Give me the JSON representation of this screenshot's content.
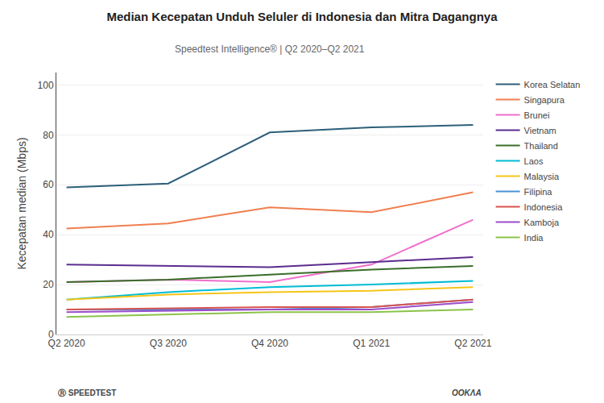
{
  "chart_data": {
    "type": "line",
    "title": "Median Kecepatan Unduh Seluler di Indonesia dan Mitra Dagangnya",
    "subtitle": "Speedtest Intelligence® | Q2 2020–Q2 2021",
    "ylabel": "Kecepatan median (Mbps)",
    "categories": [
      "Q2 2020",
      "Q3 2020",
      "Q4 2020",
      "Q1 2021",
      "Q2 2021"
    ],
    "series": [
      {
        "name": "Korea Selatan",
        "color": "#2d5f7a",
        "values": [
          59,
          60.5,
          81,
          83,
          84
        ]
      },
      {
        "name": "Singapura",
        "color": "#f07f4f",
        "values": [
          42.5,
          44.5,
          51,
          49,
          57
        ]
      },
      {
        "name": "Brunei",
        "color": "#f06ecd",
        "values": [
          21,
          22,
          21,
          28,
          46
        ]
      },
      {
        "name": "Vietnam",
        "color": "#5b2d8e",
        "values": [
          28,
          27.5,
          27,
          29,
          31
        ]
      },
      {
        "name": "Thailand",
        "color": "#3a6e2a",
        "values": [
          21,
          22,
          24,
          26,
          27.5
        ]
      },
      {
        "name": "Laos",
        "color": "#00bcd4",
        "values": [
          14,
          17,
          19,
          20,
          21.5
        ]
      },
      {
        "name": "Malaysia",
        "color": "#f5c518",
        "values": [
          14,
          16,
          17,
          17.5,
          19
        ]
      },
      {
        "name": "Filipina",
        "color": "#4a90d9",
        "values": [
          10,
          10,
          10,
          11,
          14
        ]
      },
      {
        "name": "Indonesia",
        "color": "#d9534f",
        "values": [
          10,
          10.5,
          11,
          11,
          14
        ]
      },
      {
        "name": "Kamboja",
        "color": "#9b4dca",
        "values": [
          9,
          9.5,
          10,
          10,
          13
        ]
      },
      {
        "name": "India",
        "color": "#8bc34a",
        "values": [
          7,
          8,
          9,
          9,
          10
        ]
      }
    ],
    "ylim": [
      0,
      105
    ],
    "yticks": [
      0,
      20,
      40,
      60,
      80,
      100
    ],
    "grid": true,
    "legend": "right",
    "annotations": [
      "Ⓡ SPEEDTEST",
      "OOKΛA"
    ]
  }
}
